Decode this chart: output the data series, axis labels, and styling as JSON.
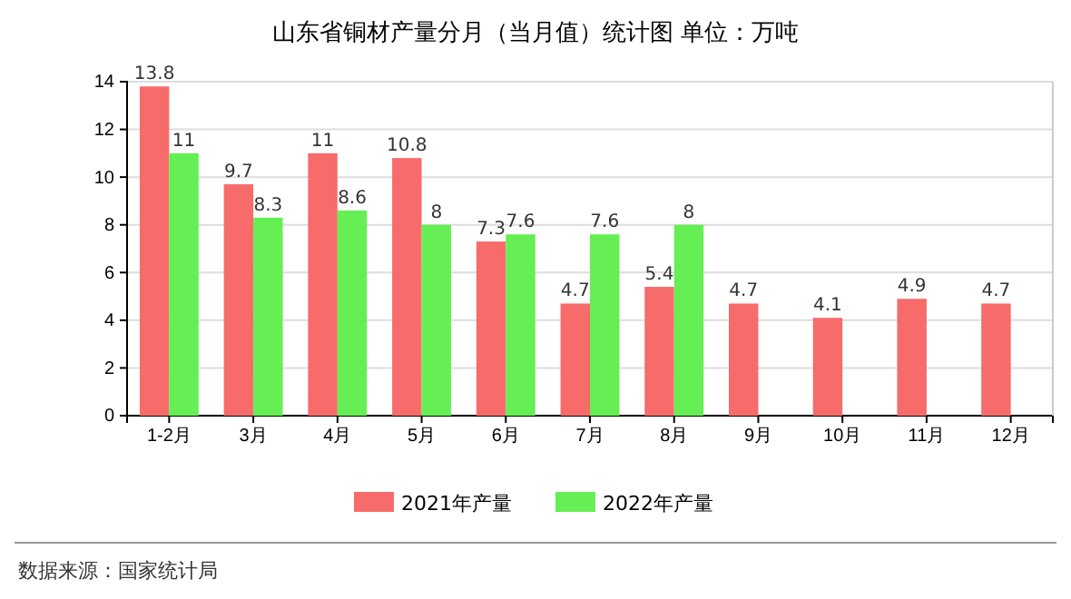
{
  "chart_data": {
    "type": "bar",
    "title": "山东省铜材产量分月（当月值）统计图 单位：万吨",
    "categories": [
      "1-2月",
      "3月",
      "4月",
      "5月",
      "6月",
      "7月",
      "8月",
      "9月",
      "10月",
      "11月",
      "12月"
    ],
    "series": [
      {
        "name": "2021年产量",
        "color": "#f86b6b",
        "values": [
          13.8,
          9.7,
          11,
          10.8,
          7.3,
          4.7,
          5.4,
          4.7,
          4.1,
          4.9,
          4.7
        ]
      },
      {
        "name": "2022年产量",
        "color": "#66ee55",
        "values": [
          11,
          8.3,
          8.6,
          8,
          7.6,
          7.6,
          8,
          null,
          null,
          null,
          null
        ]
      }
    ],
    "ylim": [
      0,
      14
    ],
    "yticks": [
      0,
      2,
      4,
      6,
      8,
      10,
      12,
      14
    ],
    "grid": "y",
    "legend": "bottom",
    "data_labels": true,
    "annotations": [
      "数据来源：国家统计局"
    ]
  }
}
